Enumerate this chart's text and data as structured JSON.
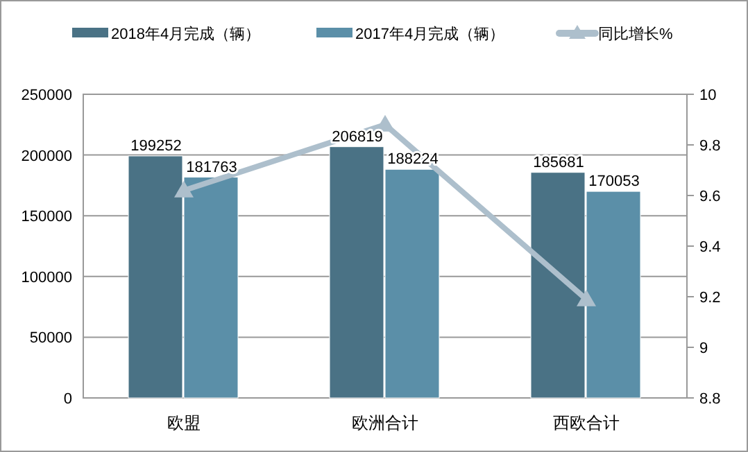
{
  "chart_data": {
    "type": "bar",
    "categories": [
      "欧盟",
      "欧洲合计",
      "西欧合计"
    ],
    "series": [
      {
        "name": "2018年4月完成（辆）",
        "color": "#4a7285",
        "values": [
          199252,
          206819,
          185681
        ],
        "value_labels": [
          "199252",
          "206819",
          "185681"
        ]
      },
      {
        "name": "2017年4月完成（辆）",
        "color": "#5b8fa8",
        "values": [
          181763,
          188224,
          170053
        ],
        "value_labels": [
          "181763",
          "188224",
          "170053"
        ]
      },
      {
        "name": "同比增长%",
        "type": "line",
        "axis": "y2",
        "color": "#adbfcc",
        "marker": "triangle",
        "values": [
          9.62,
          9.88,
          9.19
        ]
      }
    ],
    "ylim": [
      0,
      250000
    ],
    "yticks": [
      0,
      50000,
      100000,
      150000,
      200000,
      250000
    ],
    "y2lim": [
      8.8,
      10
    ],
    "y2ticks": [
      8.8,
      9,
      9.2,
      9.4,
      9.6,
      9.8,
      10
    ],
    "grid": "y",
    "legend": "top"
  }
}
